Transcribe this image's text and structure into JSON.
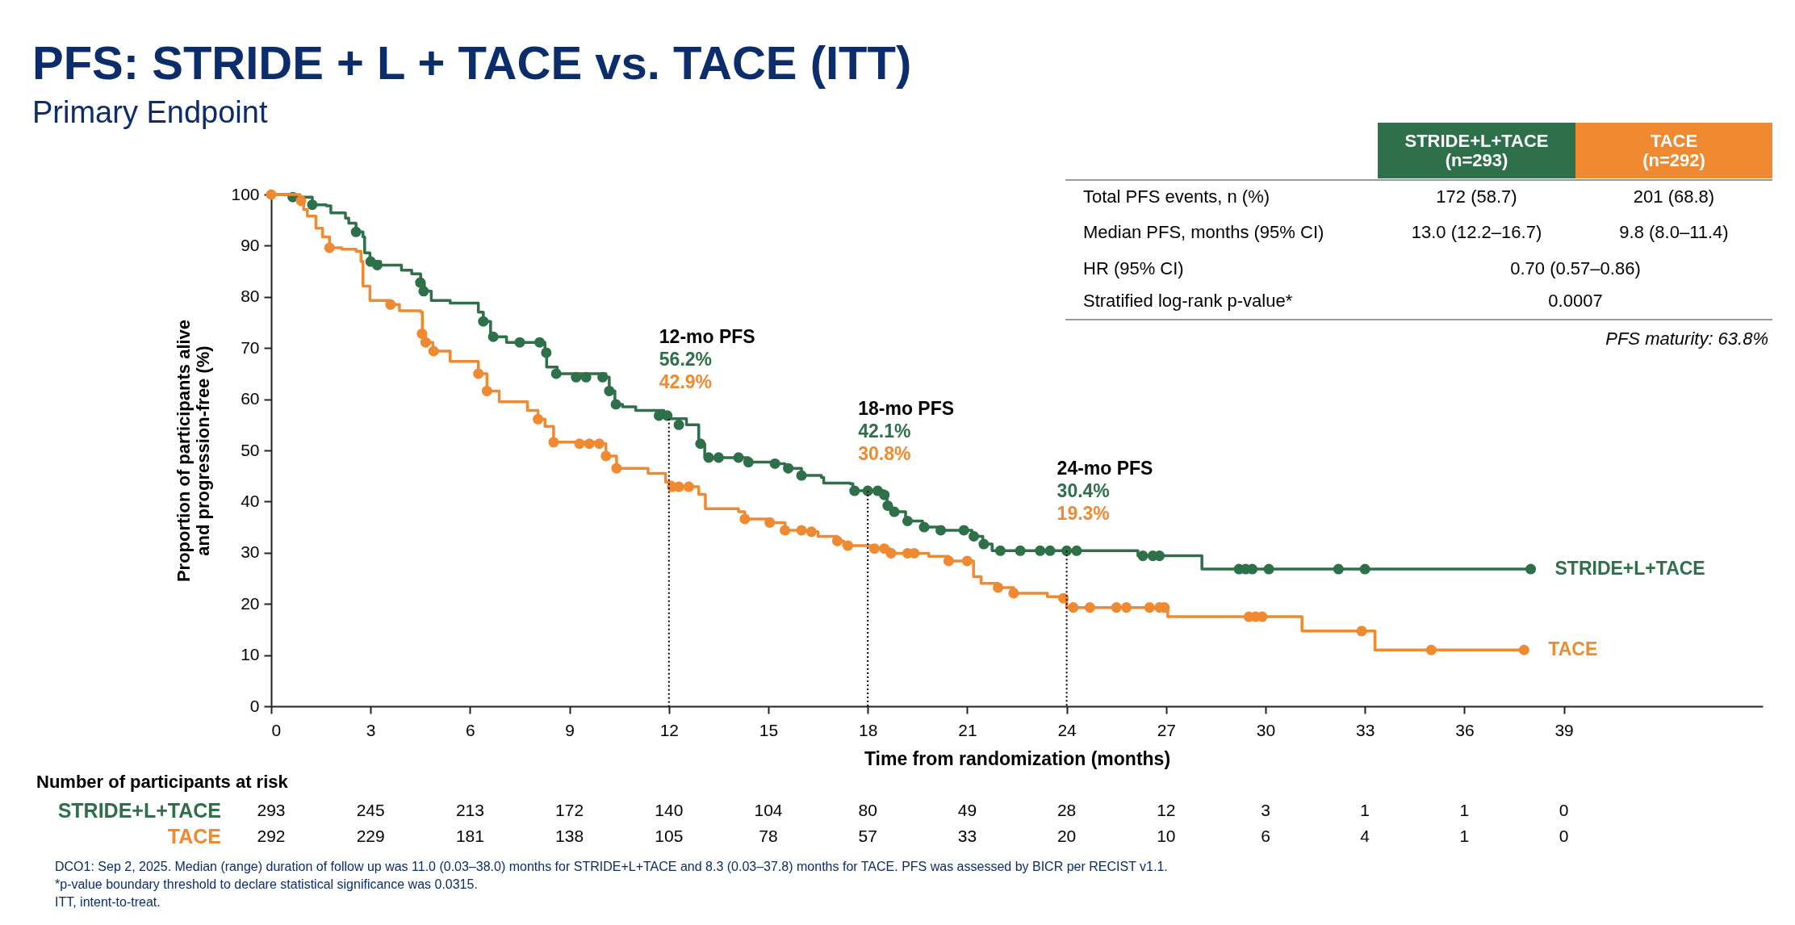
{
  "chart_data": [
    {
      "type": "step",
      "title": "PFS: STRIDE + L + TACE vs. TACE (ITT)",
      "subtitle": "Primary Endpoint",
      "xlabel": "Time from randomization (months)",
      "ylabel": "Proportion of participants alive\nand progression-free (%)",
      "xlim": [
        0,
        45
      ],
      "xticks": [
        0,
        3,
        6,
        9,
        12,
        15,
        18,
        21,
        24,
        27,
        30,
        33,
        36,
        39
      ],
      "ylim": [
        0,
        100
      ],
      "yticks": [
        0,
        10,
        20,
        30,
        40,
        50,
        60,
        70,
        80,
        90,
        100
      ],
      "grid": false,
      "series": [
        {
          "name": "STRIDE+L+TACE",
          "type": "step",
          "color": "#2e7049",
          "x": [
            0,
            0.65,
            1.24,
            1.66,
            1.8,
            2.24,
            2.34,
            2.56,
            2.77,
            2.82,
            2.98,
            3.3,
            3.93,
            4.24,
            4.51,
            4.62,
            4.83,
            5.4,
            6.25,
            6.4,
            6.62,
            6.67,
            7.1,
            8.1,
            8.26,
            8.31,
            8.63,
            10.1,
            10.2,
            10.37,
            10.6,
            11,
            11.85,
            12,
            12.53,
            12.9,
            13.08,
            13.8,
            14.4,
            15.2,
            15.5,
            16,
            16.6,
            16.67,
            17.46,
            17.55,
            18.3,
            18.5,
            18.58,
            18.72,
            19.14,
            19.65,
            20.26,
            20.96,
            21.14,
            21.47,
            21.75,
            26.15,
            28.08,
            38
          ],
          "values": [
            100,
            99.5,
            98,
            97.8,
            96.4,
            95.4,
            94.4,
            92.7,
            91.7,
            88.6,
            86.9,
            86.2,
            85.2,
            84.5,
            82.8,
            81.1,
            79.3,
            78.8,
            77,
            75.2,
            72.8,
            72.2,
            71.1,
            71.1,
            69.1,
            66.3,
            65,
            64.3,
            61.6,
            59,
            58.5,
            57.8,
            56.8,
            56.2,
            55,
            51.3,
            48.6,
            48.6,
            47.7,
            47.4,
            46.5,
            45.1,
            44.7,
            43.6,
            43.5,
            42.1,
            42.1,
            41.3,
            39.2,
            38,
            36.2,
            35,
            34.4,
            34.4,
            33.2,
            31.7,
            30.4,
            29.4,
            26.8,
            26.8
          ]
        },
        {
          "type": "scatter",
          "color": "#2e7049",
          "x": [
            0.65,
            1.24,
            2.56,
            3.0,
            3.2,
            4.5,
            4.6,
            6.4,
            6.7,
            7.5,
            8.1,
            8.3,
            8.6,
            9.2,
            9.5,
            10.0,
            10.2,
            10.4,
            11.7,
            11.95,
            12.3,
            12.95,
            13.2,
            13.5,
            14.1,
            14.4,
            15.2,
            15.6,
            16.0,
            17.6,
            18.0,
            18.3,
            18.5,
            18.6,
            18.8,
            19.2,
            19.7,
            20.2,
            20.9,
            21.2,
            21.5,
            22.0,
            22.6,
            23.2,
            23.5,
            24.0,
            24.3,
            26.3,
            26.6,
            26.8,
            29.2,
            29.4,
            29.6,
            30.1,
            32.2,
            33.0,
            38.0
          ],
          "values": [
            99.5,
            98,
            92.7,
            86.9,
            86.2,
            82.8,
            81.1,
            75.2,
            72.2,
            71.1,
            71.1,
            69.1,
            65,
            64.3,
            64.3,
            64.3,
            61.6,
            59,
            56.8,
            56.8,
            55,
            51.3,
            48.6,
            48.6,
            48.6,
            47.7,
            47.4,
            46.5,
            45.1,
            42.1,
            42.1,
            42.1,
            41.3,
            39.2,
            38,
            36.2,
            35,
            34.4,
            34.4,
            33.2,
            31.7,
            30.4,
            30.4,
            30.4,
            30.4,
            30.4,
            30.4,
            29.4,
            29.4,
            29.4,
            26.8,
            26.8,
            26.8,
            26.8,
            26.8,
            26.8,
            26.8
          ]
        },
        {
          "name": "TACE",
          "type": "step",
          "color": "#f08a32",
          "x": [
            0,
            0.55,
            0.87,
            0.98,
            1.09,
            1.35,
            1.55,
            1.76,
            2.13,
            2.56,
            2.71,
            2.77,
            2.98,
            3.6,
            3.87,
            4.51,
            4.56,
            4.66,
            4.88,
            5.4,
            6.25,
            6.51,
            6.88,
            7.73,
            8.05,
            8.26,
            8.52,
            9.9,
            10.1,
            10.42,
            11.37,
            11.9,
            12.1,
            12.9,
            13.1,
            14.1,
            14.29,
            15.04,
            15.5,
            16.25,
            16.5,
            17.08,
            17.27,
            18.2,
            18.67,
            19.84,
            20.44,
            21.19,
            21.42,
            21.93,
            22.4,
            23.42,
            23.9,
            24.0,
            27.05,
            31.1,
            33.3,
            37.8
          ],
          "values": [
            100,
            100,
            98.8,
            97.1,
            95.8,
            93.4,
            91.7,
            89.6,
            89.3,
            88.9,
            86.9,
            82.1,
            79.3,
            78.5,
            77.3,
            77,
            72.8,
            71.1,
            69.4,
            67.4,
            65,
            61.6,
            59.5,
            57.8,
            56.1,
            54.7,
            51.6,
            51.3,
            48.9,
            46.5,
            45.5,
            43.8,
            42.9,
            41.4,
            38.6,
            38,
            36.6,
            35.9,
            34.4,
            34.1,
            33.2,
            32.3,
            31.4,
            30.8,
            29.9,
            29.3,
            28.4,
            25.3,
            24,
            23.2,
            22.1,
            21.4,
            21.1,
            19.3,
            17.5,
            14.7,
            11,
            11
          ]
        },
        {
          "type": "scatter",
          "color": "#f08a32",
          "x": [
            0,
            0.9,
            1.76,
            3.6,
            4.55,
            4.66,
            4.9,
            6.25,
            6.51,
            8.05,
            8.52,
            9.3,
            9.6,
            9.9,
            10.1,
            10.42,
            12.1,
            12.3,
            12.6,
            14.29,
            15.04,
            15.5,
            16.0,
            16.3,
            17.08,
            17.4,
            18.2,
            18.5,
            18.7,
            19.2,
            19.4,
            20.44,
            21.0,
            21.93,
            22.4,
            23.9,
            24.2,
            24.7,
            25.5,
            25.8,
            26.5,
            26.8,
            26.95,
            29.5,
            29.7,
            29.9,
            32.9,
            35.0,
            37.8
          ],
          "values": [
            100,
            98.8,
            89.6,
            78.5,
            72.8,
            71.1,
            69.4,
            65,
            61.6,
            56.1,
            51.6,
            51.3,
            51.3,
            51.3,
            48.9,
            46.5,
            42.9,
            42.9,
            42.9,
            36.6,
            35.9,
            34.4,
            34.4,
            34.1,
            32.3,
            31.4,
            30.8,
            30.8,
            29.9,
            29.9,
            29.9,
            28.4,
            28.4,
            23.2,
            22.1,
            21.1,
            19.3,
            19.3,
            19.3,
            19.3,
            19.3,
            19.3,
            19.3,
            17.5,
            17.5,
            17.5,
            14.7,
            11,
            11
          ]
        }
      ],
      "ref_lines": [
        {
          "axis": "x",
          "value": 12,
          "line_style": "dotted"
        },
        {
          "axis": "x",
          "value": 18,
          "line_style": "dotted"
        },
        {
          "axis": "x",
          "value": 24,
          "line_style": "dotted"
        }
      ],
      "annotations": [
        "12-mo PFS",
        "56.2%",
        "42.9%",
        "18-mo PFS",
        "42.1%",
        "30.8%",
        "24-mo PFS",
        "30.4%",
        "19.3%"
      ]
    },
    {
      "type": "other",
      "categories": [
        "STRIDE+L+TACE\n(n=293)",
        "TACE\n(n=292)"
      ],
      "colors": [
        "#2e7049",
        "#f08a32"
      ],
      "y_categories": [
        "Total PFS events, n (%)",
        "Median PFS, months (95% CI)",
        "HR (95% CI)",
        "Stratified log-rank p-value*"
      ],
      "cell_labels": [
        [
          "172 (58.7)",
          "201 (68.8)"
        ],
        [
          "13.0 (12.2–16.7)",
          "9.8 (8.0–11.4)"
        ],
        [
          "0.70 (0.57–0.86)",
          null
        ],
        [
          "0.0007",
          null
        ]
      ],
      "annotations": [
        "PFS maturity: 63.8%"
      ]
    },
    {
      "type": "other",
      "title": "Number of participants at risk",
      "y_categories": [
        "STRIDE+L+TACE",
        "TACE"
      ],
      "colors": [
        "#2e7049",
        "#f08a32"
      ],
      "cell_labels": [
        [
          "293",
          "245",
          "213",
          "172",
          "140",
          "104",
          "80",
          "49",
          "28",
          "12",
          "3",
          "1",
          "1",
          "0"
        ],
        [
          "292",
          "229",
          "181",
          "138",
          "105",
          "78",
          "57",
          "33",
          "20",
          "10",
          "6",
          "4",
          "1",
          "0"
        ]
      ],
      "annotations": [
        "DCO1: Sep 2, 2025. Median (range) duration of follow up was 11.0 (0.03–38.0) months for STRIDE+L+TACE and 8.3 (0.03–37.8) months for TACE. PFS was assessed by BICR per RECIST v1.1.",
        "*p-value boundary threshold to declare statistical significance was 0.0315.",
        "ITT, intent-to-treat."
      ]
    }
  ]
}
